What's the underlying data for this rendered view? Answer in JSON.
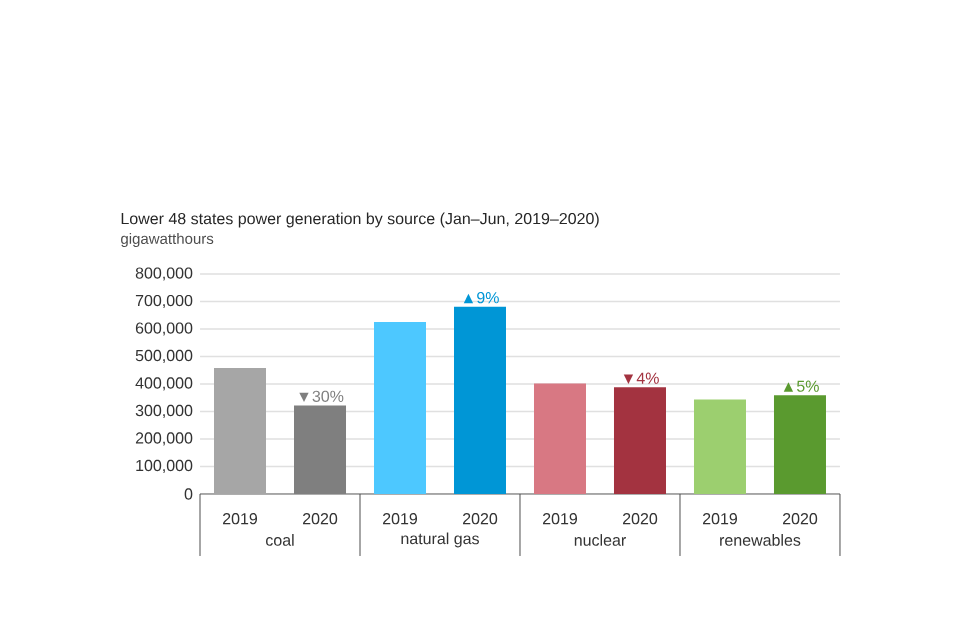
{
  "chart_data": {
    "type": "bar",
    "title": "Lower 48 states power generation by source (Jan–Jun, 2019–2020)",
    "ylabel": "gigawatthours",
    "categories": [
      "2019",
      "2020",
      "2019",
      "2020",
      "2019",
      "2020",
      "2019",
      "2020"
    ],
    "values": [
      458000,
      322000,
      625000,
      681000,
      402000,
      388000,
      344000,
      359000
    ],
    "colors": [
      "#a6a6a6",
      "#7f7f7f",
      "#4dc8ff",
      "#0096d6",
      "#d87883",
      "#a33340",
      "#9ccf6f",
      "#5a9a2f"
    ],
    "annotations": [
      "coal",
      "natural gas",
      "nuclear",
      "renewables",
      "▼30%",
      "▲9%",
      "▼4%",
      "▲5%"
    ],
    "ylim": [
      0,
      800000
    ],
    "yticks": [
      {
        "value": 0,
        "label": "0"
      },
      {
        "value": 100000,
        "label": "100,000"
      },
      {
        "value": 200000,
        "label": "200,000"
      },
      {
        "value": 300000,
        "label": "300,000"
      },
      {
        "value": 400000,
        "label": "400,000"
      },
      {
        "value": 500000,
        "label": "500,000"
      },
      {
        "value": 600000,
        "label": "600,000"
      },
      {
        "value": 700000,
        "label": "700,000"
      },
      {
        "value": 800000,
        "label": "800,000"
      }
    ],
    "grid": "y"
  }
}
